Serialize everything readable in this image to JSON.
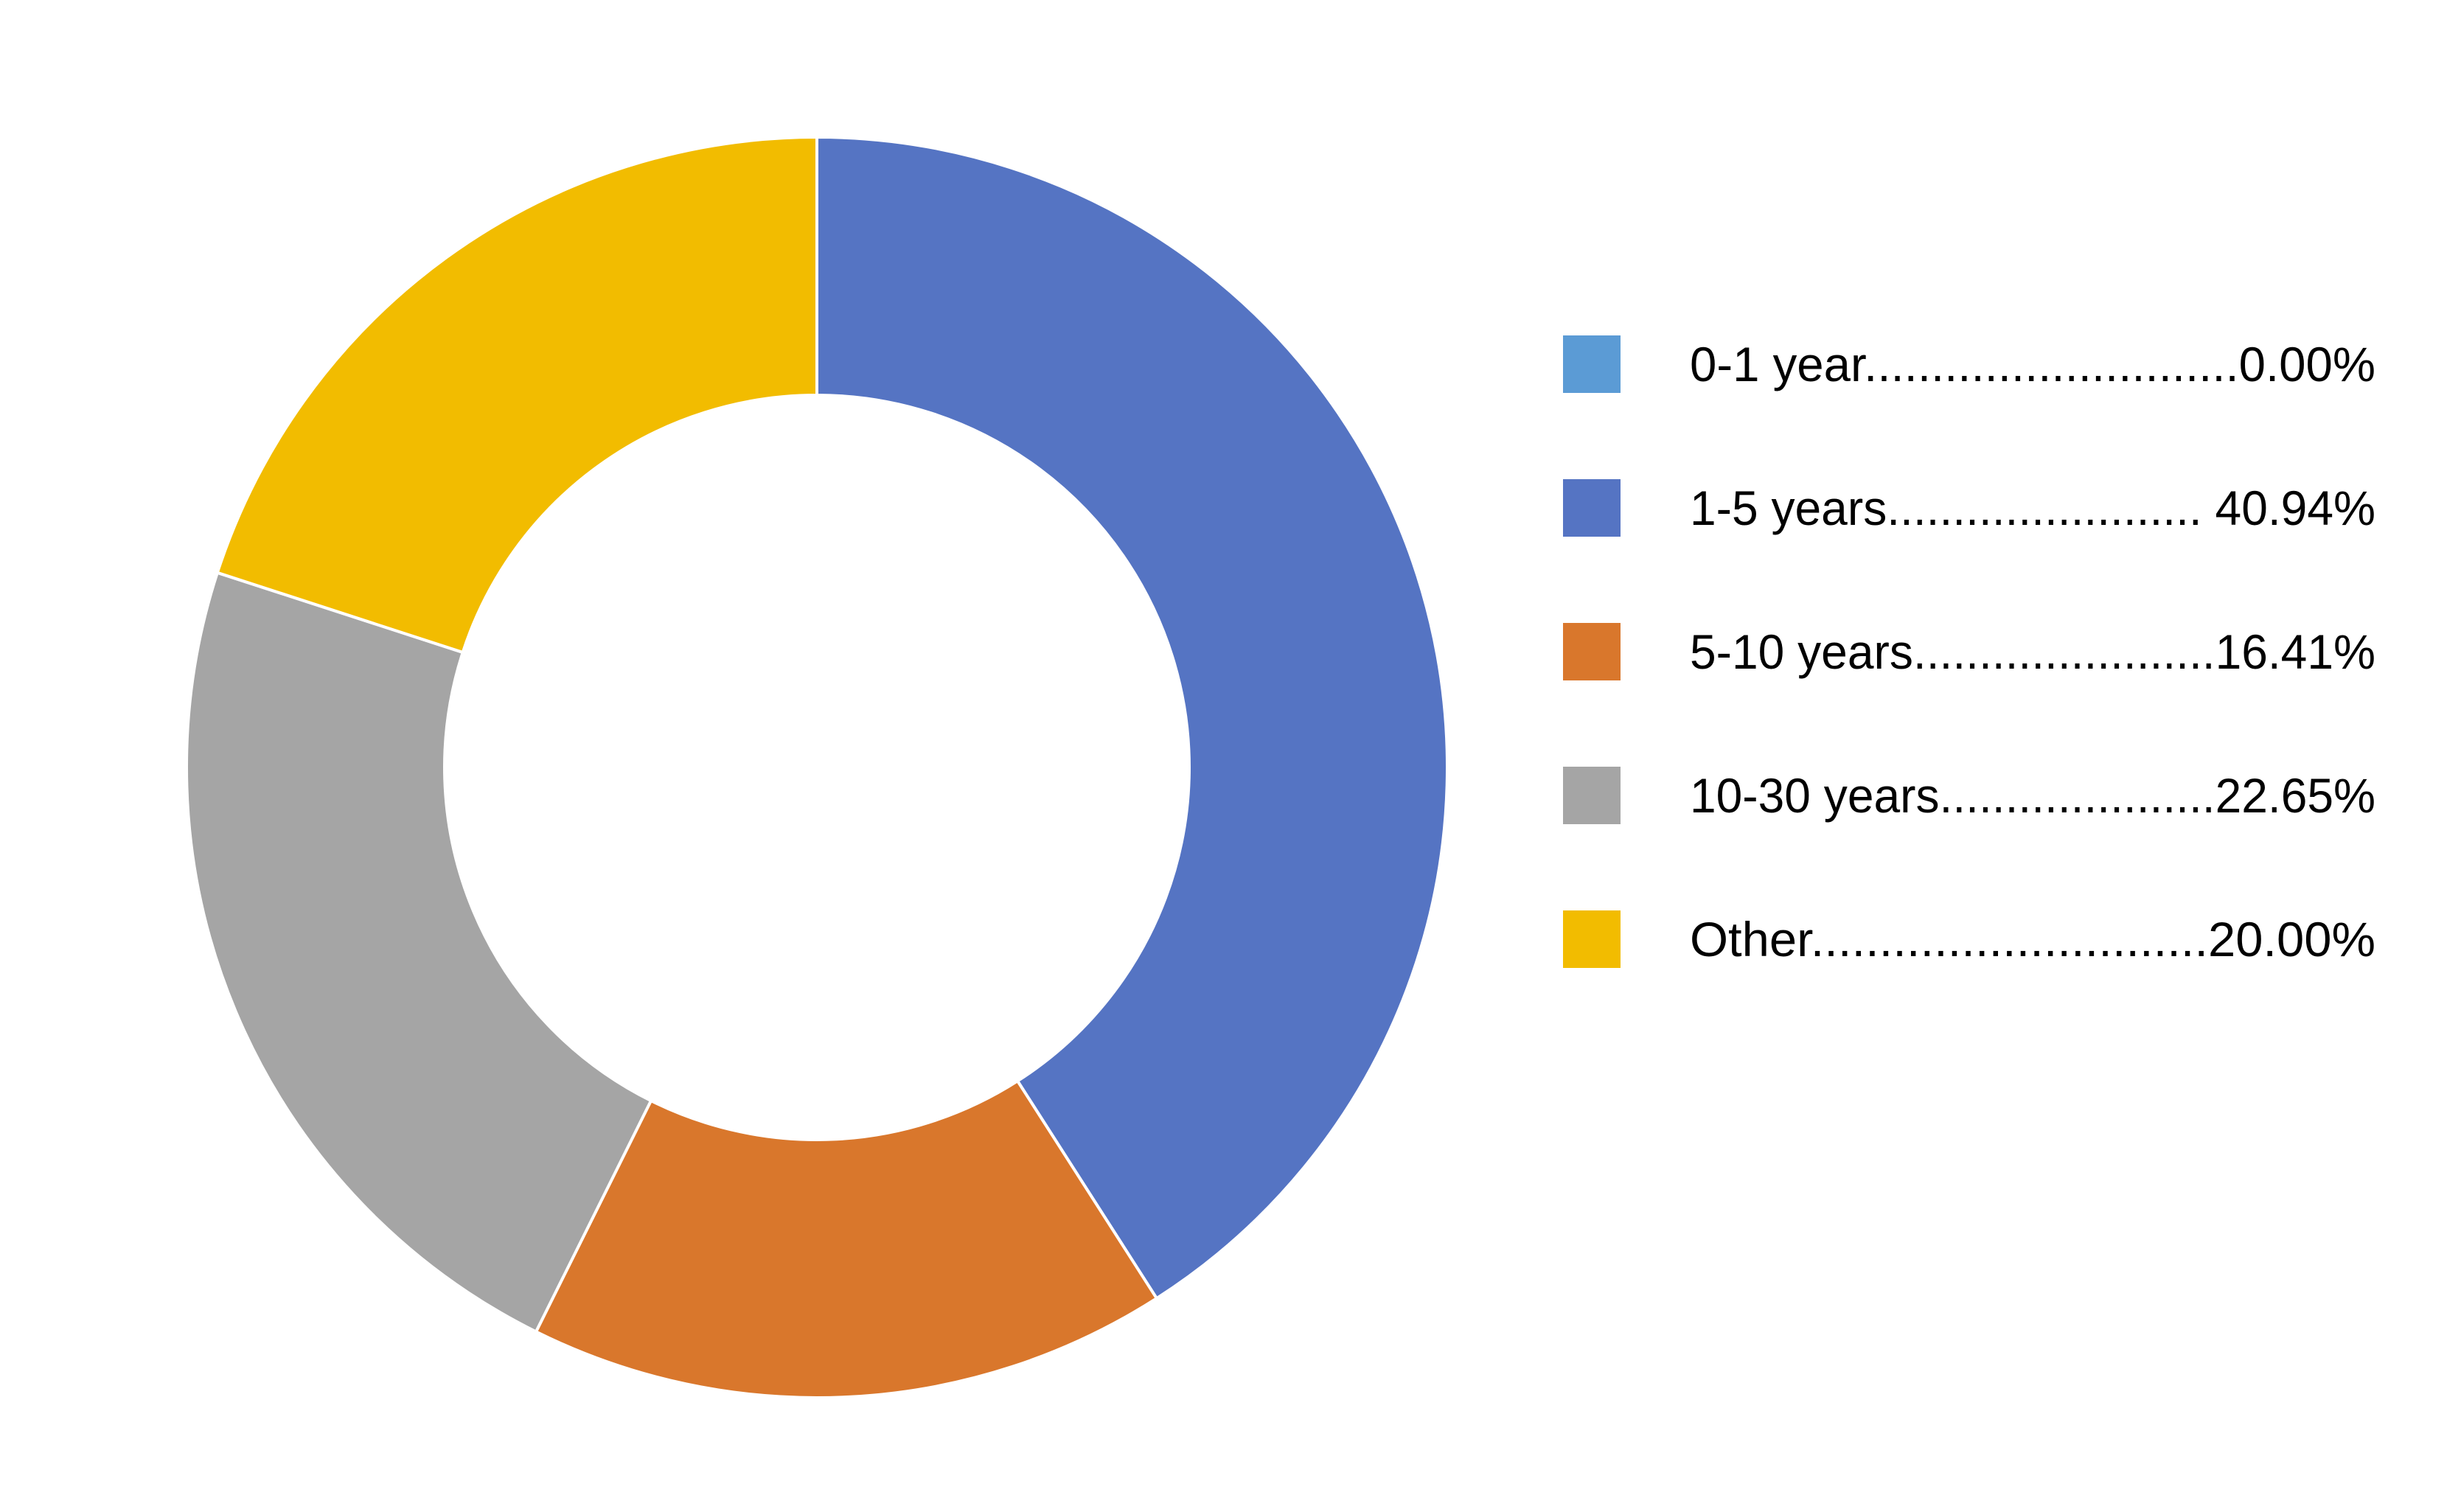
{
  "chart_data": {
    "type": "pie",
    "variant": "donut",
    "title": "",
    "start_angle_deg": 0,
    "direction": "clockwise",
    "legend_position": "right",
    "slices": [
      {
        "label": "0-1 year",
        "value": 0.0,
        "display": "0.00%",
        "legend_text": "0-1 year............................0.00%",
        "color": "#5B9BD5"
      },
      {
        "label": "1-5 years",
        "value": 40.94,
        "display": "40.94%",
        "legend_text": "1-5 years........................ 40.94%",
        "color": "#5574C3"
      },
      {
        "label": "5-10 years",
        "value": 16.41,
        "display": "16.41%",
        "legend_text": "5-10 years.......................16.41%",
        "color": "#D9772C"
      },
      {
        "label": "10-30 years",
        "value": 22.65,
        "display": "22.65%",
        "legend_text": "10-30 years.....................22.65%",
        "color": "#A5A5A5"
      },
      {
        "label": "Other",
        "value": 20.0,
        "display": "20.00%",
        "legend_text": "Other.............................20.00%",
        "color": "#F2BC00"
      }
    ]
  }
}
